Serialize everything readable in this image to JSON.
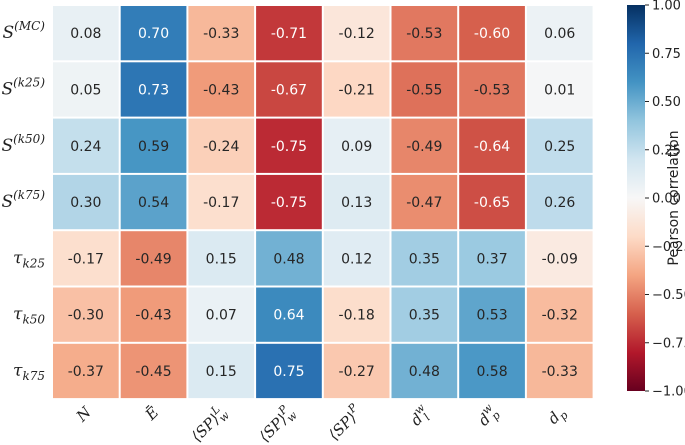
{
  "chart_data": {
    "type": "heatmap",
    "rows": [
      {
        "base": "S",
        "sup": "(MC)",
        "sub": ""
      },
      {
        "base": "S",
        "sup": "(k25)",
        "sub": ""
      },
      {
        "base": "S",
        "sup": "(k50)",
        "sub": ""
      },
      {
        "base": "S",
        "sup": "(k75)",
        "sub": ""
      },
      {
        "base": "τ",
        "sup": "",
        "sub": "k25"
      },
      {
        "base": "τ",
        "sup": "",
        "sub": "k50"
      },
      {
        "base": "τ",
        "sup": "",
        "sub": "k75"
      }
    ],
    "columns": [
      {
        "base": "N",
        "sup": "",
        "sub": ""
      },
      {
        "base": "Ē",
        "sup": "",
        "sub": ""
      },
      {
        "base": "⟨SP⟩",
        "sup": "L",
        "sub": "w"
      },
      {
        "base": "⟨SP⟩",
        "sup": "P",
        "sub": "w"
      },
      {
        "base": "⟨SP⟩",
        "sup": "P",
        "sub": ""
      },
      {
        "base": "d",
        "sup": "w",
        "sub": "l"
      },
      {
        "base": "d",
        "sup": "w",
        "sub": "p"
      },
      {
        "base": "d",
        "sup": "",
        "sub": "p"
      }
    ],
    "values": [
      [
        0.08,
        0.7,
        -0.33,
        -0.71,
        -0.12,
        -0.53,
        -0.6,
        0.06
      ],
      [
        0.05,
        0.73,
        -0.43,
        -0.67,
        -0.21,
        -0.55,
        -0.53,
        0.01
      ],
      [
        0.24,
        0.59,
        -0.24,
        -0.75,
        0.09,
        -0.49,
        -0.64,
        0.25
      ],
      [
        0.3,
        0.54,
        -0.17,
        -0.75,
        0.13,
        -0.47,
        -0.65,
        0.26
      ],
      [
        -0.17,
        -0.49,
        0.15,
        0.48,
        0.12,
        0.35,
        0.37,
        -0.09
      ],
      [
        -0.3,
        -0.43,
        0.07,
        0.64,
        -0.18,
        0.35,
        0.53,
        -0.32
      ],
      [
        -0.37,
        -0.45,
        0.15,
        0.75,
        -0.27,
        0.48,
        0.58,
        -0.33
      ]
    ],
    "value_labels": [
      [
        "0.08",
        "0.70",
        "-0.33",
        "-0.71",
        "-0.12",
        "-0.53",
        "-0.60",
        "0.06"
      ],
      [
        "0.05",
        "0.73",
        "-0.43",
        "-0.67",
        "-0.21",
        "-0.55",
        "-0.53",
        "0.01"
      ],
      [
        "0.24",
        "0.59",
        "-0.24",
        "-0.75",
        "0.09",
        "-0.49",
        "-0.64",
        "0.25"
      ],
      [
        "0.30",
        "0.54",
        "-0.17",
        "-0.75",
        "0.13",
        "-0.47",
        "-0.65",
        "0.26"
      ],
      [
        "-0.17",
        "-0.49",
        "0.15",
        "0.48",
        "0.12",
        "0.35",
        "0.37",
        "-0.09"
      ],
      [
        "-0.30",
        "-0.43",
        "0.07",
        "0.64",
        "-0.18",
        "0.35",
        "0.53",
        "-0.32"
      ],
      [
        "-0.37",
        "-0.45",
        "0.15",
        "0.75",
        "-0.27",
        "0.48",
        "0.58",
        "-0.33"
      ]
    ],
    "vmin": -1.0,
    "vmax": 1.0,
    "colormap": "RdBu",
    "colorbar": {
      "label": "Pearson correlation",
      "ticks": [
        1.0,
        0.75,
        0.5,
        0.25,
        0.0,
        -0.25,
        -0.5,
        -0.75,
        -1.0
      ],
      "tick_labels": [
        "1.00",
        "0.75",
        "0.50",
        "0.25",
        "0.00",
        "−0.25",
        "−0.50",
        "−0.75",
        "−1.00"
      ]
    }
  },
  "colors": {
    "stops": [
      "#67001f",
      "#b2182b",
      "#d6604d",
      "#f4a582",
      "#fddbc7",
      "#f7f7f7",
      "#d1e5f0",
      "#92c5de",
      "#4393c3",
      "#2166ac",
      "#053061"
    ],
    "text_dark": "#262626",
    "text_light": "#ffffff"
  }
}
